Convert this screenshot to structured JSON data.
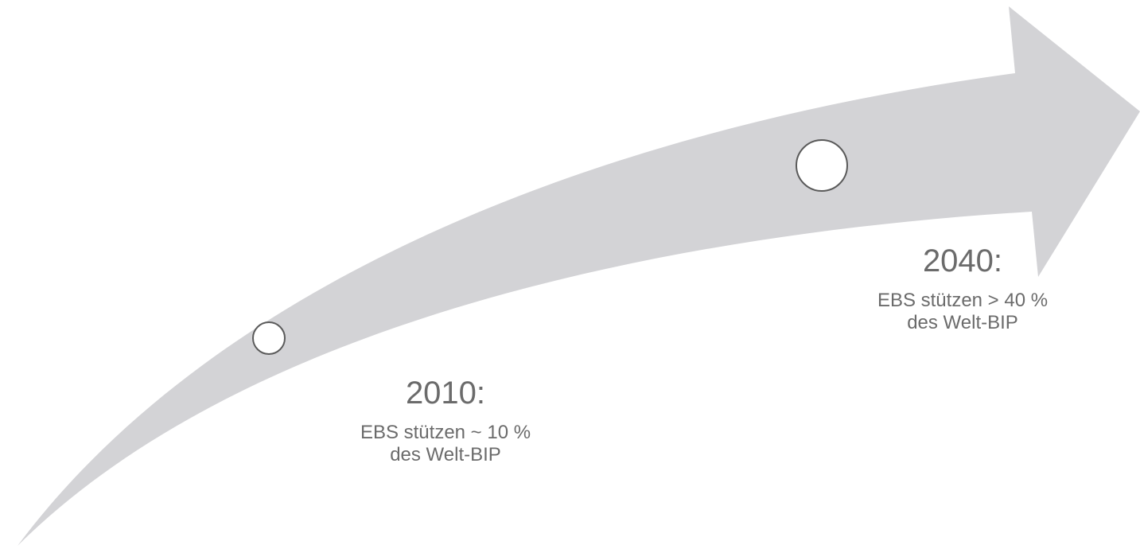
{
  "colors": {
    "arrow_fill": "#d3d3d6",
    "marker_stroke": "#5a5a5a",
    "marker_fill": "#ffffff",
    "text": "#6b6b6b"
  },
  "milestones": [
    {
      "year_label": "2010:",
      "line1": "EBS stützen ~ 10 %",
      "line2": "des Welt-BIP"
    },
    {
      "year_label": "2040:",
      "line1": "EBS stützen > 40 %",
      "line2": "des Welt-BIP"
    }
  ]
}
